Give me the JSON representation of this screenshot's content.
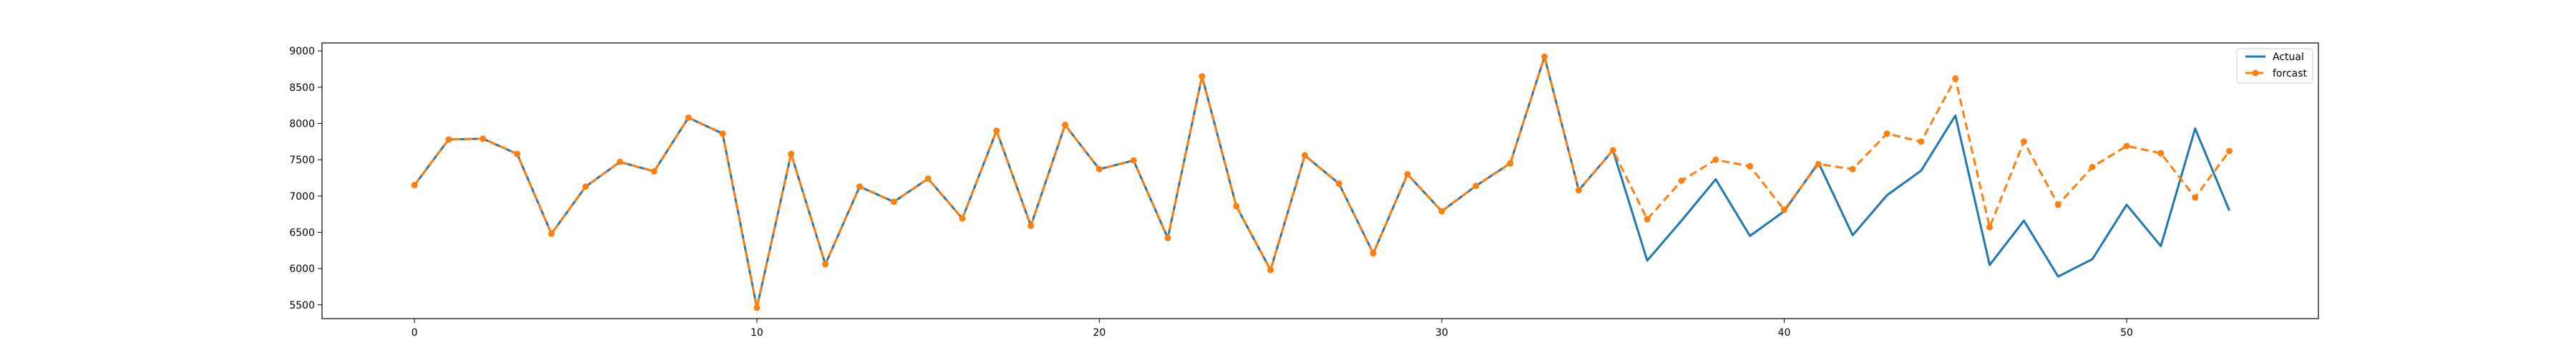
{
  "chart_data": {
    "type": "line",
    "title": "",
    "xlabel": "",
    "ylabel": "",
    "xlim": [
      -2.7,
      55.6
    ],
    "ylim": [
      5310,
      9110
    ],
    "xticks": [
      0,
      10,
      20,
      30,
      40,
      50
    ],
    "yticks": [
      5500,
      6000,
      6500,
      7000,
      7500,
      8000,
      8500,
      9000
    ],
    "grid": false,
    "legend_position": "top-right",
    "x": [
      0,
      1,
      2,
      3,
      4,
      5,
      6,
      7,
      8,
      9,
      10,
      11,
      12,
      13,
      14,
      15,
      16,
      17,
      18,
      19,
      20,
      21,
      22,
      23,
      24,
      25,
      26,
      27,
      28,
      29,
      30,
      31,
      32,
      33,
      34,
      35,
      36,
      37,
      38,
      39,
      40,
      41,
      42,
      43,
      44,
      45,
      46,
      47,
      48,
      49,
      50,
      51,
      52,
      53
    ],
    "series": [
      {
        "name": "Actual",
        "color": "#1f77b4",
        "style": "solid",
        "marker": "none",
        "values": [
          7150,
          7780,
          7790,
          7580,
          6480,
          7130,
          7470,
          7340,
          8080,
          7860,
          5460,
          7580,
          6060,
          7130,
          6920,
          7240,
          6690,
          7900,
          6590,
          7980,
          7370,
          7490,
          6420,
          8650,
          6860,
          5980,
          7560,
          7170,
          6210,
          7300,
          6790,
          7140,
          7450,
          8920,
          7080,
          7630,
          6110,
          6660,
          7230,
          6450,
          6790,
          7460,
          6460,
          7010,
          7350,
          8110,
          6050,
          6660,
          5890,
          6130,
          6880,
          6310,
          7930,
          6800
        ]
      },
      {
        "name": "forcast",
        "color": "#ff7f0e",
        "style": "dashed",
        "marker": "circle",
        "values": [
          7150,
          7780,
          7790,
          7580,
          6480,
          7130,
          7470,
          7340,
          8080,
          7860,
          5460,
          7580,
          6060,
          7130,
          6920,
          7240,
          6690,
          7900,
          6590,
          7980,
          7370,
          7490,
          6420,
          8650,
          6860,
          5980,
          7560,
          7170,
          6210,
          7300,
          6790,
          7140,
          7450,
          8920,
          7080,
          7630,
          6680,
          7210,
          7500,
          7410,
          6810,
          7440,
          7370,
          7860,
          7750,
          8620,
          6570,
          7750,
          6880,
          7400,
          7690,
          7590,
          6980,
          7620
        ]
      }
    ]
  }
}
